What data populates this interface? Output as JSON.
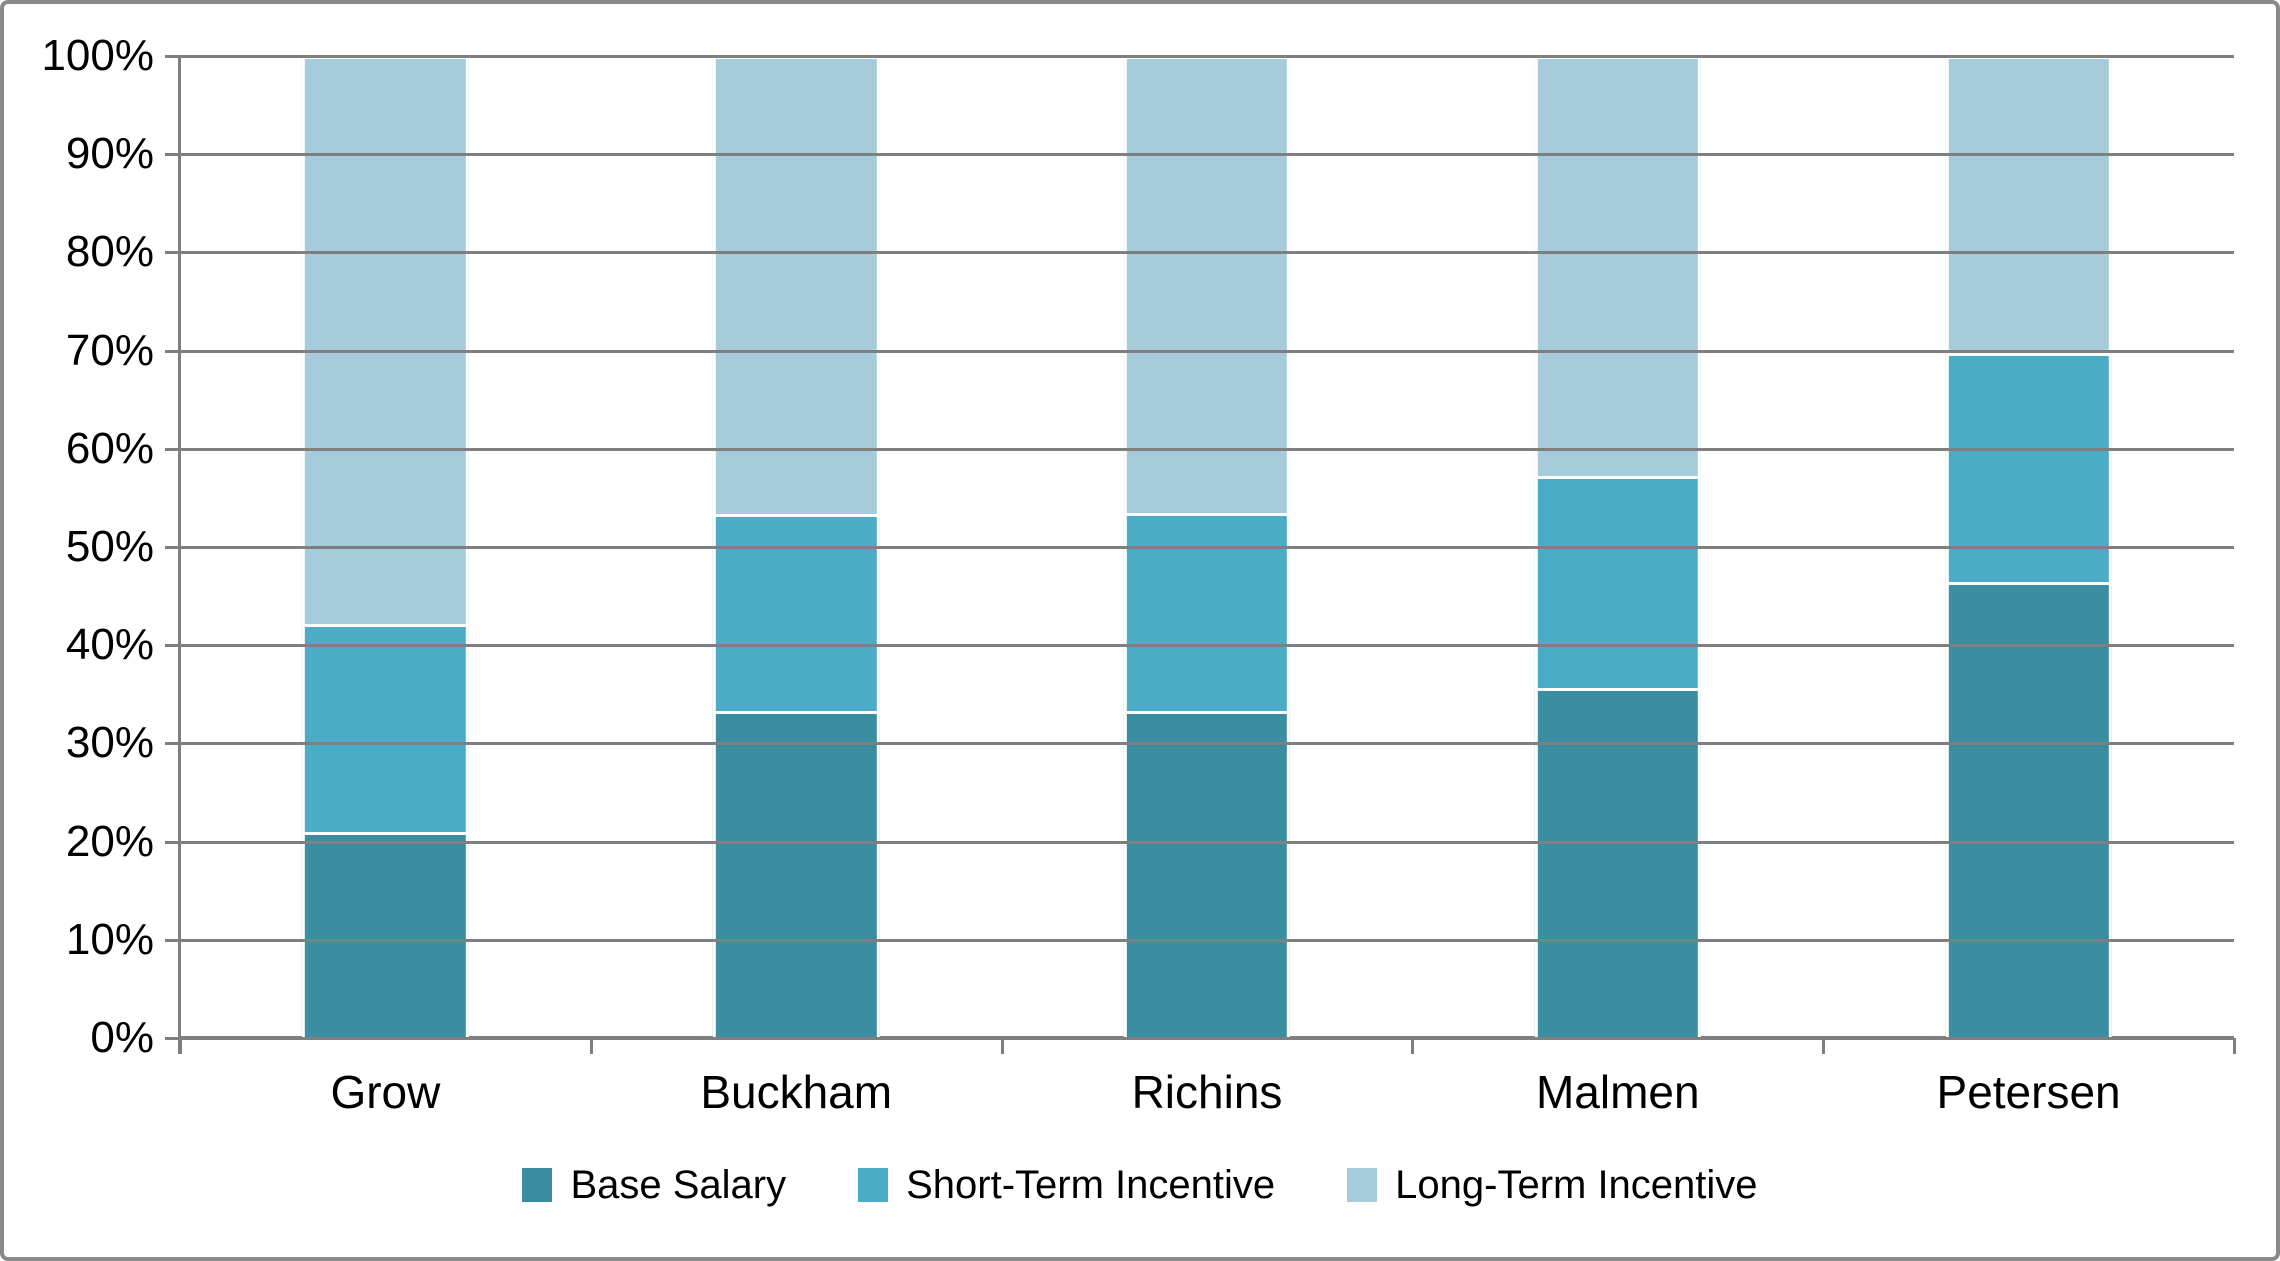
{
  "figure": {
    "background": "#FFFFFF",
    "border_color": "#8A8A8A"
  },
  "chart_data": {
    "type": "bar",
    "subtype": "stacked-100-column",
    "title": "",
    "xlabel": "",
    "ylabel": "",
    "categories": [
      "Grow",
      "Buckham",
      "Richins",
      "Malmen",
      "Petersen"
    ],
    "series": [
      {
        "name": "Base Salary",
        "color": "#3B8EA2",
        "values": [
          21.0,
          33.3,
          33.3,
          35.6,
          46.4
        ]
      },
      {
        "name": "Short-Term Incentive",
        "color": "#4BACC6",
        "values": [
          21.2,
          20.1,
          20.2,
          21.6,
          23.4
        ]
      },
      {
        "name": "Long-Term Incentive",
        "color": "#A6CCDC",
        "values": [
          57.8,
          46.6,
          46.5,
          42.8,
          30.2
        ]
      }
    ],
    "y_axis": {
      "min": 0,
      "max": 100,
      "step": 10,
      "tick_labels": [
        "0%",
        "10%",
        "20%",
        "30%",
        "40%",
        "50%",
        "60%",
        "70%",
        "80%",
        "90%",
        "100%"
      ]
    },
    "grid": true,
    "gridline_color": "#7F7F7F",
    "axis_color": "#7F7F7F",
    "legend_position": "bottom"
  }
}
